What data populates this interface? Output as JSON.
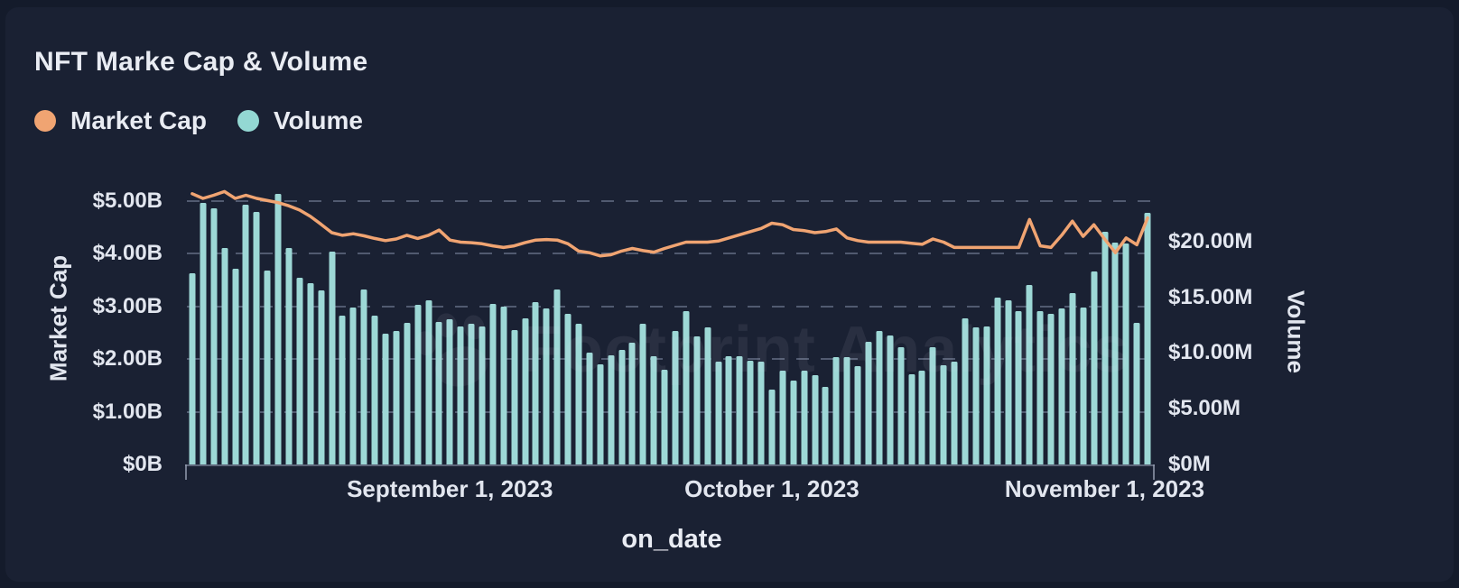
{
  "title": "NFT Marke Cap & Volume",
  "legend": {
    "items": [
      {
        "label": "Market Cap",
        "color": "#f0a472"
      },
      {
        "label": "Volume",
        "color": "#93d8d3"
      }
    ]
  },
  "axes": {
    "left": {
      "title": "Market Cap",
      "ticks": [
        {
          "label": "$5.00B",
          "value": 5
        },
        {
          "label": "$4.00B",
          "value": 4
        },
        {
          "label": "$3.00B",
          "value": 3
        },
        {
          "label": "$2.00B",
          "value": 2
        },
        {
          "label": "$1.00B",
          "value": 1
        },
        {
          "label": "$0B",
          "value": 0
        }
      ]
    },
    "right": {
      "title": "Volume",
      "ticks": [
        {
          "label": "$20.00M",
          "value": 20
        },
        {
          "label": "$15.00M",
          "value": 15
        },
        {
          "label": "$10.00M",
          "value": 10
        },
        {
          "label": "$5.00M",
          "value": 5
        },
        {
          "label": "$0M",
          "value": 0
        }
      ]
    },
    "x": {
      "title": "on_date",
      "ticks": [
        {
          "label": "September 1, 2023",
          "index": 24
        },
        {
          "label": "October 1, 2023",
          "index": 54
        },
        {
          "label": "November 1, 2023",
          "index": 85
        }
      ]
    }
  },
  "watermark": {
    "text": "Footprint Analytics"
  },
  "colors": {
    "background": "#1a2133",
    "bar": "#9dd8d6",
    "line": "#f0a472",
    "text": "#e9ecf3",
    "grid": "rgba(148,160,186,0.45)"
  },
  "chart_data": {
    "type": "bar+line",
    "title": "NFT Marke Cap & Volume",
    "xlabel": "on_date",
    "grid": "dashed-horizontal",
    "legend_position": "top-left",
    "left_axis": {
      "label": "Market Cap",
      "unit": "USD billions",
      "ylim": [
        0,
        5.53
      ],
      "tick_values": [
        0,
        1,
        2,
        3,
        4,
        5
      ]
    },
    "right_axis": {
      "label": "Volume",
      "unit": "USD millions",
      "ylim": [
        0,
        26.15
      ],
      "tick_values": [
        0,
        5,
        10,
        15,
        20
      ]
    },
    "x": [
      "2023-08-08",
      "2023-08-09",
      "2023-08-10",
      "2023-08-11",
      "2023-08-12",
      "2023-08-13",
      "2023-08-14",
      "2023-08-15",
      "2023-08-16",
      "2023-08-17",
      "2023-08-18",
      "2023-08-19",
      "2023-08-20",
      "2023-08-21",
      "2023-08-22",
      "2023-08-23",
      "2023-08-24",
      "2023-08-25",
      "2023-08-26",
      "2023-08-27",
      "2023-08-28",
      "2023-08-29",
      "2023-08-30",
      "2023-08-31",
      "2023-09-01",
      "2023-09-02",
      "2023-09-03",
      "2023-09-04",
      "2023-09-05",
      "2023-09-06",
      "2023-09-07",
      "2023-09-08",
      "2023-09-09",
      "2023-09-10",
      "2023-09-11",
      "2023-09-12",
      "2023-09-13",
      "2023-09-14",
      "2023-09-15",
      "2023-09-16",
      "2023-09-17",
      "2023-09-18",
      "2023-09-19",
      "2023-09-20",
      "2023-09-21",
      "2023-09-22",
      "2023-09-23",
      "2023-09-24",
      "2023-09-25",
      "2023-09-26",
      "2023-09-27",
      "2023-09-28",
      "2023-09-29",
      "2023-09-30",
      "2023-10-01",
      "2023-10-02",
      "2023-10-03",
      "2023-10-04",
      "2023-10-05",
      "2023-10-06",
      "2023-10-07",
      "2023-10-08",
      "2023-10-09",
      "2023-10-10",
      "2023-10-11",
      "2023-10-12",
      "2023-10-13",
      "2023-10-14",
      "2023-10-15",
      "2023-10-16",
      "2023-10-17",
      "2023-10-18",
      "2023-10-19",
      "2023-10-20",
      "2023-10-21",
      "2023-10-22",
      "2023-10-23",
      "2023-10-24",
      "2023-10-25",
      "2023-10-26",
      "2023-10-27",
      "2023-10-28",
      "2023-10-29",
      "2023-10-30",
      "2023-10-31",
      "2023-11-01",
      "2023-11-02",
      "2023-11-03",
      "2023-11-04",
      "2023-11-05"
    ],
    "series": [
      {
        "name": "Market Cap",
        "kind": "line",
        "axis": "left",
        "unit": "USD billions",
        "color": "#f0a472",
        "values": [
          5.14,
          5.05,
          5.11,
          5.18,
          5.05,
          5.11,
          5.05,
          5.01,
          4.97,
          4.91,
          4.83,
          4.71,
          4.56,
          4.4,
          4.35,
          4.38,
          4.34,
          4.29,
          4.25,
          4.28,
          4.35,
          4.29,
          4.35,
          4.45,
          4.26,
          4.22,
          4.21,
          4.19,
          4.15,
          4.12,
          4.15,
          4.21,
          4.26,
          4.27,
          4.26,
          4.19,
          4.05,
          4.02,
          3.96,
          3.98,
          4.05,
          4.1,
          4.06,
          4.03,
          4.1,
          4.16,
          4.22,
          4.22,
          4.22,
          4.24,
          4.3,
          4.36,
          4.42,
          4.48,
          4.58,
          4.55,
          4.46,
          4.44,
          4.4,
          4.42,
          4.47,
          4.3,
          4.25,
          4.22,
          4.22,
          4.22,
          4.22,
          4.2,
          4.18,
          4.28,
          4.22,
          4.12,
          4.12,
          4.12,
          4.12,
          4.12,
          4.12,
          4.12,
          4.65,
          4.15,
          4.12,
          4.35,
          4.62,
          4.33,
          4.55,
          4.28,
          4.02,
          4.3,
          4.17,
          4.68
        ]
      },
      {
        "name": "Volume",
        "kind": "bar",
        "axis": "right",
        "unit": "USD millions",
        "color": "#9dd8d6",
        "values": [
          17.2,
          23.5,
          23.0,
          19.4,
          17.6,
          23.3,
          22.7,
          17.4,
          24.3,
          19.4,
          16.8,
          16.3,
          15.6,
          19.1,
          13.4,
          14.1,
          15.7,
          13.4,
          11.7,
          12.0,
          12.7,
          14.3,
          14.7,
          12.8,
          13.0,
          12.4,
          12.6,
          12.4,
          14.4,
          14.2,
          12.1,
          13.1,
          14.6,
          14.0,
          15.7,
          13.5,
          12.6,
          10.0,
          9.0,
          9.8,
          10.3,
          10.9,
          12.6,
          9.7,
          8.5,
          12.0,
          13.8,
          11.5,
          12.3,
          9.2,
          9.7,
          9.7,
          9.3,
          9.2,
          6.7,
          8.4,
          7.5,
          8.4,
          8.0,
          7.0,
          9.6,
          9.6,
          8.8,
          11.0,
          12.0,
          11.6,
          10.5,
          8.1,
          8.4,
          10.5,
          8.9,
          9.2,
          13.1,
          12.3,
          12.4,
          15.0,
          14.7,
          13.8,
          16.1,
          13.8,
          13.5,
          14.0,
          15.4,
          14.1,
          17.3,
          20.9,
          19.9,
          19.8,
          12.7,
          22.6
        ]
      }
    ]
  }
}
